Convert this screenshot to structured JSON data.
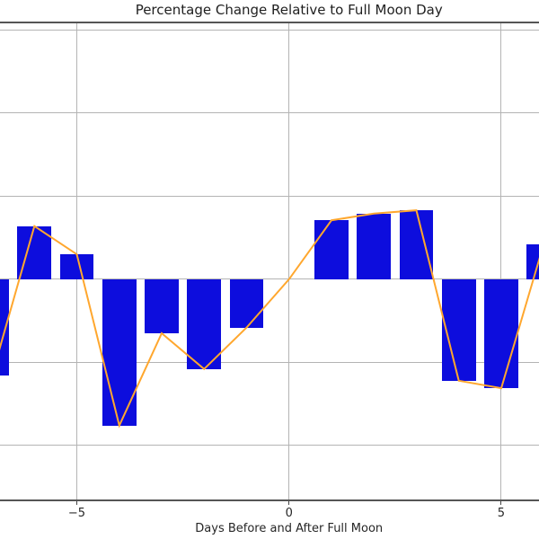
{
  "title": "Percentage Change Relative to Full Moon Day",
  "x_axis_label": "Days Before and After Full Moon",
  "x_tick_labels": [
    "−5",
    "0",
    "5"
  ],
  "y_axis_note": "y-axis tick labels are cropped off the left edge of the image; values estimated in gridline units",
  "colors": {
    "bar": "#0d0ddd",
    "line": "#ffa72e",
    "grid": "#b4b4b4",
    "spine": "#555555",
    "tick": "#444444",
    "text": "#262626",
    "background": "#ffffff"
  },
  "chart_data": {
    "type": "bar",
    "overlay": "line",
    "title": "Percentage Change Relative to Full Moon Day",
    "xlabel": "Days Before and After Full Moon",
    "ylabel": "",
    "x": [
      -7,
      -6,
      -5,
      -4,
      -3,
      -2,
      -1,
      0,
      1,
      2,
      3,
      4,
      5,
      6
    ],
    "values": [
      -1.16,
      0.64,
      0.3,
      -1.76,
      -0.65,
      -1.08,
      -0.58,
      0.0,
      0.71,
      0.79,
      0.83,
      -1.22,
      -1.31,
      0.42
    ],
    "xticks": [
      -5,
      0,
      5
    ],
    "ygrid": [
      -2,
      -1,
      0,
      1,
      2,
      3
    ],
    "xlim": [
      -6.81,
      5.89
    ],
    "ylim": [
      -2.66,
      3.09
    ],
    "bar_width": 0.8,
    "line_width": 2,
    "grid": true,
    "legend": "none"
  }
}
